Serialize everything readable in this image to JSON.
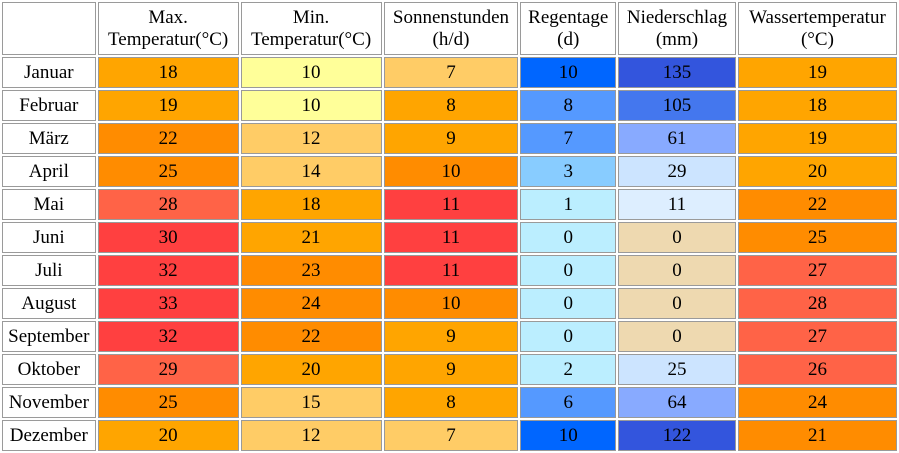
{
  "chart_data": {
    "type": "table",
    "title": "",
    "columns": [
      {
        "key": "max",
        "line1": "Max.",
        "line2": "Temperatur(°C)"
      },
      {
        "key": "min",
        "line1": "Min.",
        "line2": "Temperatur(°C)"
      },
      {
        "key": "sun",
        "line1": "Sonnenstunden",
        "line2": "(h/d)"
      },
      {
        "key": "rain",
        "line1": "Regentage",
        "line2": "(d)"
      },
      {
        "key": "precip",
        "line1": "Niederschlag",
        "line2": "(mm)"
      },
      {
        "key": "water",
        "line1": "Wassertemperatur",
        "line2": "(°C)"
      }
    ],
    "rows": [
      {
        "month": "Januar",
        "max": 18,
        "min": 10,
        "sun": 7,
        "rain": 10,
        "precip": 135,
        "water": 19
      },
      {
        "month": "Februar",
        "max": 19,
        "min": 10,
        "sun": 8,
        "rain": 8,
        "precip": 105,
        "water": 18
      },
      {
        "month": "März",
        "max": 22,
        "min": 12,
        "sun": 9,
        "rain": 7,
        "precip": 61,
        "water": 19
      },
      {
        "month": "April",
        "max": 25,
        "min": 14,
        "sun": 10,
        "rain": 3,
        "precip": 29,
        "water": 20
      },
      {
        "month": "Mai",
        "max": 28,
        "min": 18,
        "sun": 11,
        "rain": 1,
        "precip": 11,
        "water": 22
      },
      {
        "month": "Juni",
        "max": 30,
        "min": 21,
        "sun": 11,
        "rain": 0,
        "precip": 0,
        "water": 25
      },
      {
        "month": "Juli",
        "max": 32,
        "min": 23,
        "sun": 11,
        "rain": 0,
        "precip": 0,
        "water": 27
      },
      {
        "month": "August",
        "max": 33,
        "min": 24,
        "sun": 10,
        "rain": 0,
        "precip": 0,
        "water": 28
      },
      {
        "month": "September",
        "max": 32,
        "min": 22,
        "sun": 9,
        "rain": 0,
        "precip": 0,
        "water": 27
      },
      {
        "month": "Oktober",
        "max": 29,
        "min": 20,
        "sun": 9,
        "rain": 2,
        "precip": 25,
        "water": 26
      },
      {
        "month": "November",
        "max": 25,
        "min": 15,
        "sun": 8,
        "rain": 6,
        "precip": 64,
        "water": 24
      },
      {
        "month": "Dezember",
        "max": 20,
        "min": 12,
        "sun": 7,
        "rain": 10,
        "precip": 122,
        "water": 21
      }
    ],
    "colors": {
      "temp": [
        [
          30,
          "#ff4040"
        ],
        [
          28,
          "#ff6347"
        ],
        [
          22,
          "#ff8c00"
        ],
        [
          18,
          "#ffa500"
        ],
        [
          11,
          "#ffcc66"
        ],
        [
          0,
          "#ffff99"
        ]
      ],
      "sun": [
        [
          11,
          "#ff4040"
        ],
        [
          10,
          "#ff8c00"
        ],
        [
          8,
          "#ffa500"
        ],
        [
          0,
          "#ffcc66"
        ]
      ],
      "rain": [
        [
          10,
          "#0066ff"
        ],
        [
          6,
          "#5599ff"
        ],
        [
          3,
          "#88ccff"
        ],
        [
          0,
          "#bbeeff"
        ]
      ],
      "precip": [
        [
          120,
          "#3355dd"
        ],
        [
          100,
          "#4477ee"
        ],
        [
          60,
          "#88aaff"
        ],
        [
          20,
          "#cce4ff"
        ],
        [
          1,
          "#ddeeff"
        ],
        [
          0,
          "#eed9b0"
        ]
      ],
      "water": [
        [
          26,
          "#ff6347"
        ],
        [
          21,
          "#ff8c00"
        ],
        [
          0,
          "#ffa500"
        ]
      ]
    }
  }
}
